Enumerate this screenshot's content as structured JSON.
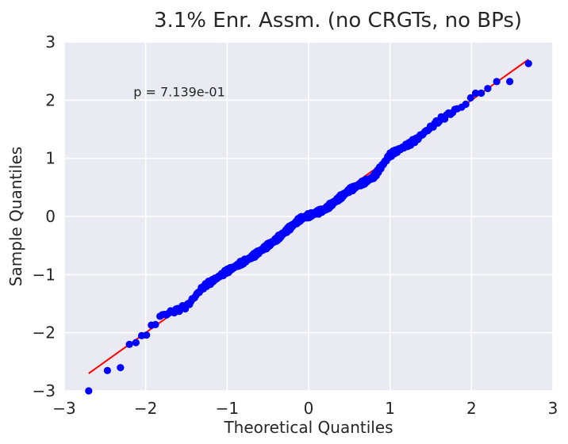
{
  "chart_data": {
    "type": "scatter",
    "title": "3.1% Enr. Assm. (no CRGTs, no BPs)",
    "xlabel": "Theoretical Quantiles",
    "ylabel": "Sample Quantiles",
    "xlim": [
      -3,
      3
    ],
    "ylim": [
      -3,
      3
    ],
    "xticks": [
      -3,
      -2,
      -1,
      0,
      1,
      2,
      3
    ],
    "yticks": [
      -3,
      -2,
      -1,
      0,
      1,
      2,
      3
    ],
    "tick_labels_x": [
      "−3",
      "−2",
      "−1",
      "0",
      "1",
      "2",
      "3"
    ],
    "tick_labels_y": [
      "−3",
      "−2",
      "−1",
      "0",
      "1",
      "2",
      "3"
    ],
    "grid": true,
    "annotation": {
      "text": "p = 7.139e-01",
      "x": -2.15,
      "y": 2.15
    },
    "reference_line": {
      "x": [
        -2.7,
        2.7
      ],
      "y": [
        -2.7,
        2.7
      ],
      "color": "#ff0000"
    },
    "points_color": "#0000ff",
    "background": "#eaeaf2",
    "tail_points": {
      "x": [
        -2.7,
        -2.47,
        -2.31,
        -2.2,
        -2.12,
        -2.05,
        -1.99,
        -1.93,
        -1.88,
        1.88,
        1.93,
        1.99,
        2.05,
        2.12,
        2.2,
        2.31,
        2.47,
        2.7
      ],
      "y": [
        -3.0,
        -2.65,
        -2.6,
        -2.2,
        -2.17,
        -2.05,
        -2.04,
        -1.87,
        -1.86,
        1.88,
        1.93,
        2.04,
        2.12,
        2.12,
        2.2,
        2.32,
        2.32,
        2.63
      ]
    },
    "bulk_points": {
      "count": 420,
      "x_range": [
        -1.85,
        1.85
      ],
      "deviation_knots_x": [
        -1.85,
        -1.5,
        -1.3,
        -1.0,
        -0.7,
        -0.4,
        -0.1,
        0.2,
        0.5,
        0.8,
        1.0,
        1.3,
        1.6,
        1.85
      ],
      "deviation_knots_dy": [
        0.12,
        -0.05,
        0.08,
        0.06,
        0.0,
        0.0,
        0.06,
        -0.08,
        -0.05,
        -0.12,
        0.06,
        0.0,
        0.05,
        0.02
      ]
    }
  }
}
